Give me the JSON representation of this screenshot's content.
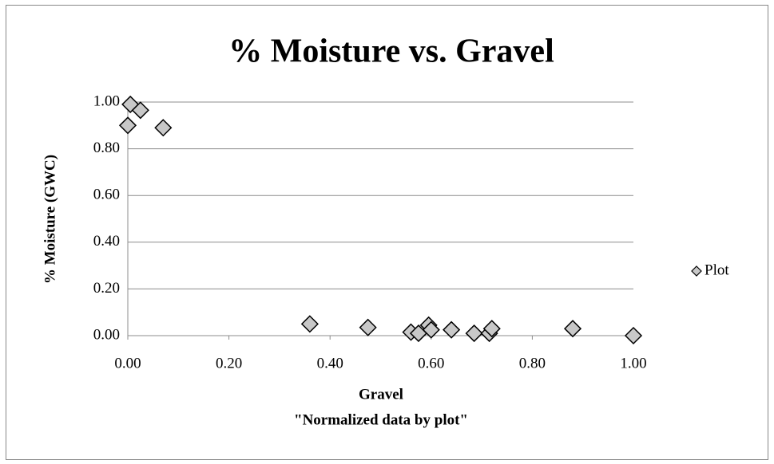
{
  "chart_data": {
    "type": "scatter",
    "title": "% Moisture vs. Gravel",
    "xlabel": "Gravel",
    "xlabel_sub": "\"Normalized data by plot\"",
    "ylabel": "% Moisture (GWC)",
    "series": [
      {
        "name": "Plot",
        "color": "#c8c8c8",
        "x": [
          0.005,
          0.0,
          0.025,
          0.07,
          0.36,
          0.475,
          0.56,
          0.575,
          0.595,
          0.6,
          0.64,
          0.685,
          0.715,
          0.72,
          0.88,
          1.0
        ],
        "values": [
          0.99,
          0.9,
          0.965,
          0.89,
          0.05,
          0.035,
          0.015,
          0.01,
          0.045,
          0.025,
          0.025,
          0.01,
          0.01,
          0.03,
          0.03,
          0.0
        ]
      }
    ],
    "xlim": [
      0,
      1
    ],
    "ylim": [
      0,
      1
    ],
    "xticks": [
      {
        "value": 0,
        "label": "0.00"
      },
      {
        "value": 0.2,
        "label": "0.20"
      },
      {
        "value": 0.4,
        "label": "0.40"
      },
      {
        "value": 0.6,
        "label": "0.60"
      },
      {
        "value": 0.8,
        "label": "0.80"
      },
      {
        "value": 1,
        "label": "1.00"
      }
    ],
    "yticks": [
      {
        "value": 0,
        "label": "0.00"
      },
      {
        "value": 0.2,
        "label": "0.20"
      },
      {
        "value": 0.4,
        "label": "0.40"
      },
      {
        "value": 0.6,
        "label": "0.60"
      },
      {
        "value": 0.8,
        "label": "0.80"
      },
      {
        "value": 1,
        "label": "1.00"
      }
    ],
    "grid": true,
    "legend": "right"
  }
}
